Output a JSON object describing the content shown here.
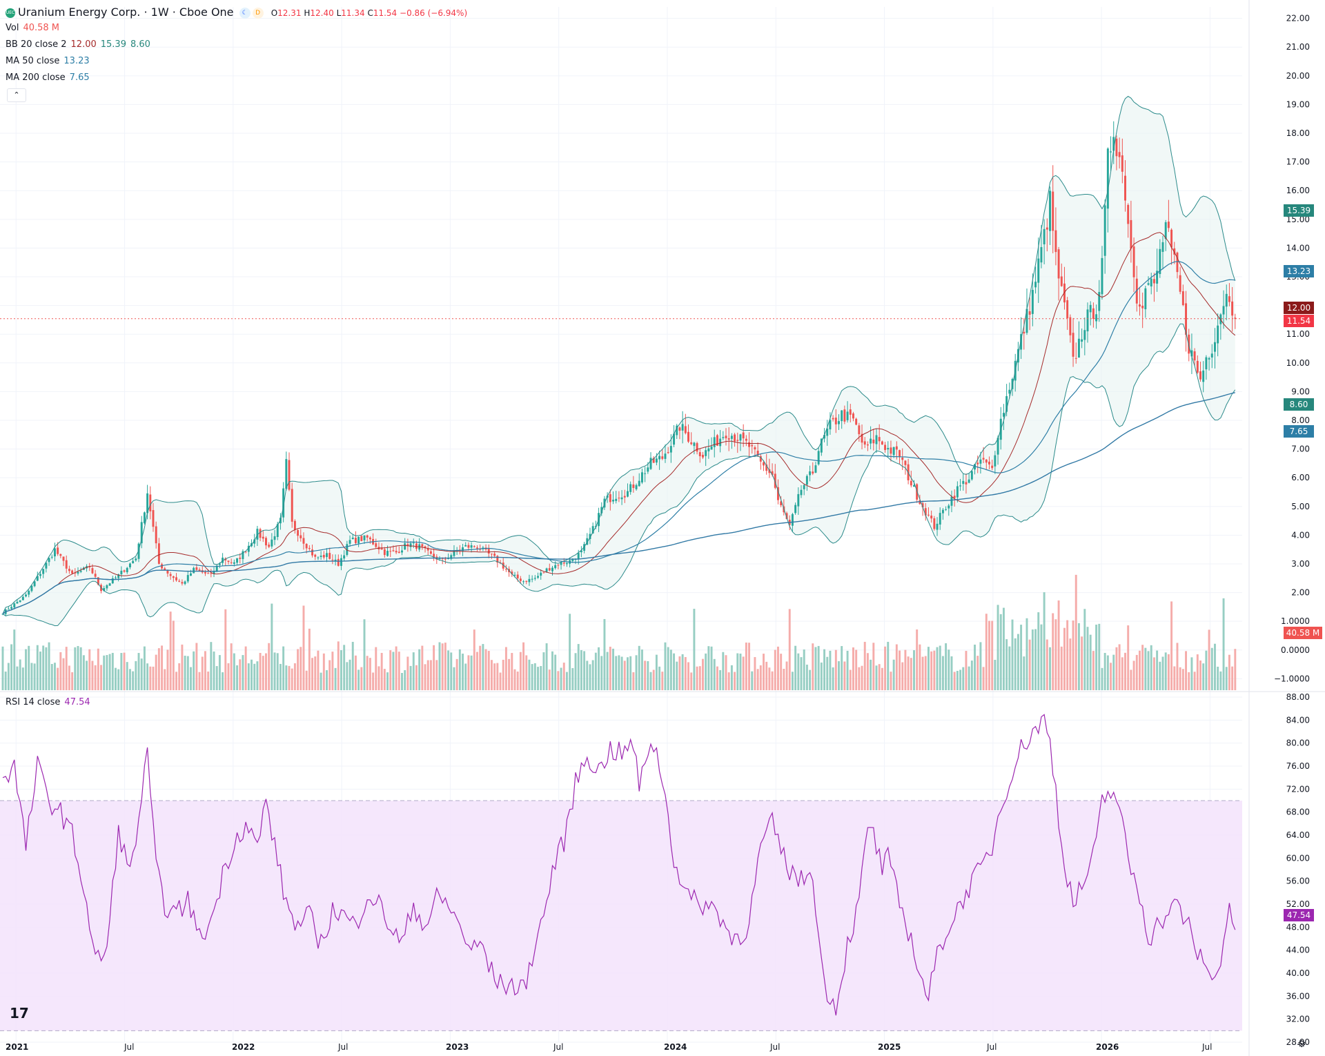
{
  "header": {
    "symbol_title": "Uranium Energy Corp. · 1W · Cboe One",
    "logo_text": "UEC",
    "open_label": "O",
    "open": "12.31",
    "high_label": "H",
    "high": "12.40",
    "low_label": "L",
    "low": "11.34",
    "close_label": "C",
    "close": "11.54",
    "change": "−0.86 (−6.94%)"
  },
  "legend": {
    "vol_label": "Vol",
    "vol_value": "40.58 M",
    "bb_label": "BB 20 close 2",
    "bb_basis": "12.00",
    "bb_upper": "15.39",
    "bb_lower": "8.60",
    "ma50_label": "MA 50 close",
    "ma50_value": "13.23",
    "ma200_label": "MA 200 close",
    "ma200_value": "7.65",
    "rsi_label": "RSI 14 close",
    "rsi_value": "47.54"
  },
  "colors": {
    "up": "#26a69a",
    "down": "#ef5350",
    "ma50": "#2d7ea6",
    "ma200": "#3179a5",
    "bb_basis": "#a52a2a",
    "bb_band": "#2a8a8a",
    "rsi": "#9c27b0",
    "price_line": "#ef5350"
  },
  "price_axis_labels": [
    "22.00",
    "21.00",
    "20.00",
    "19.00",
    "18.00",
    "17.00",
    "16.00",
    "15.00",
    "14.00",
    "13.00",
    "12.00",
    "11.00",
    "10.00",
    "9.00",
    "8.00",
    "7.00",
    "6.00",
    "5.00",
    "4.00",
    "3.00",
    "2.00",
    "1.0000",
    "0.0000",
    "−1.0000"
  ],
  "rsi_axis_labels": [
    "88.00",
    "84.00",
    "80.00",
    "76.00",
    "72.00",
    "68.00",
    "64.00",
    "60.00",
    "56.00",
    "52.00",
    "48.00",
    "44.00",
    "40.00",
    "36.00",
    "32.00",
    "28.00"
  ],
  "badges": [
    {
      "text": "15.39",
      "color": "#26877c"
    },
    {
      "text": "13.23",
      "color": "#2d7ea6"
    },
    {
      "text": "12.00",
      "color": "#8b1a1a"
    },
    {
      "text": "11.54",
      "color": "#f23645"
    },
    {
      "text": "8.60",
      "color": "#26877c"
    },
    {
      "text": "7.65",
      "color": "#2d7ea6"
    },
    {
      "text": "40.58 M",
      "color": "#ef5350"
    },
    {
      "text": "47.54",
      "color": "#9c27b0"
    }
  ],
  "time_axis_labels": [
    "2021",
    "Jul",
    "2022",
    "Jul",
    "2023",
    "Jul",
    "2024",
    "Jul",
    "2025",
    "Jul",
    "2026",
    "Jul"
  ],
  "chart_data": {
    "type": "candlestick",
    "interval": "1W",
    "price_range": [
      -1.4,
      22.4
    ],
    "rsi_range": [
      28,
      88
    ],
    "rsi_bands": [
      30,
      70
    ],
    "last_close": 11.54,
    "closes_path": [
      [
        0,
        1.3
      ],
      [
        8,
        1.9
      ],
      [
        15,
        3.0
      ],
      [
        18,
        3.5
      ],
      [
        24,
        2.6
      ],
      [
        30,
        2.9
      ],
      [
        34,
        2.1
      ],
      [
        40,
        2.6
      ],
      [
        46,
        3.2
      ],
      [
        50,
        5.5
      ],
      [
        54,
        3.0
      ],
      [
        58,
        2.6
      ],
      [
        62,
        2.3
      ],
      [
        66,
        2.8
      ],
      [
        72,
        2.6
      ],
      [
        76,
        3.2
      ],
      [
        80,
        3.0
      ],
      [
        84,
        3.5
      ],
      [
        88,
        4.1
      ],
      [
        92,
        3.6
      ],
      [
        96,
        4.5
      ],
      [
        98,
        6.5
      ],
      [
        100,
        4.4
      ],
      [
        104,
        3.8
      ],
      [
        108,
        3.2
      ],
      [
        112,
        3.3
      ],
      [
        116,
        3.0
      ],
      [
        120,
        3.8
      ],
      [
        126,
        3.9
      ],
      [
        132,
        3.4
      ],
      [
        136,
        3.4
      ],
      [
        140,
        3.7
      ],
      [
        144,
        3.6
      ],
      [
        148,
        3.3
      ],
      [
        152,
        3.1
      ],
      [
        156,
        3.4
      ],
      [
        160,
        3.6
      ],
      [
        164,
        3.6
      ],
      [
        170,
        3.2
      ],
      [
        176,
        2.6
      ],
      [
        180,
        2.4
      ],
      [
        184,
        2.5
      ],
      [
        188,
        2.8
      ],
      [
        192,
        3.0
      ],
      [
        196,
        3.1
      ],
      [
        200,
        3.4
      ],
      [
        204,
        4.2
      ],
      [
        208,
        5.2
      ],
      [
        212,
        5.4
      ],
      [
        216,
        5.5
      ],
      [
        220,
        6.0
      ],
      [
        224,
        6.5
      ],
      [
        228,
        6.7
      ],
      [
        232,
        7.4
      ],
      [
        234,
        7.8
      ],
      [
        238,
        7.3
      ],
      [
        242,
        6.8
      ],
      [
        246,
        7.2
      ],
      [
        250,
        7.6
      ],
      [
        254,
        7.4
      ],
      [
        258,
        7.1
      ],
      [
        262,
        6.5
      ],
      [
        266,
        6.1
      ],
      [
        268,
        5.2
      ],
      [
        272,
        4.3
      ],
      [
        276,
        5.6
      ],
      [
        280,
        6.2
      ],
      [
        282,
        7.0
      ],
      [
        286,
        7.8
      ],
      [
        290,
        8.2
      ],
      [
        294,
        8.0
      ],
      [
        298,
        7.0
      ],
      [
        302,
        7.4
      ],
      [
        306,
        7.0
      ],
      [
        310,
        6.8
      ],
      [
        314,
        5.8
      ],
      [
        318,
        5.0
      ],
      [
        322,
        4.3
      ],
      [
        326,
        5.0
      ],
      [
        330,
        5.6
      ],
      [
        334,
        6.0
      ],
      [
        338,
        6.6
      ],
      [
        342,
        6.3
      ],
      [
        344,
        7.6
      ],
      [
        348,
        9.2
      ],
      [
        352,
        10.8
      ],
      [
        356,
        12.4
      ],
      [
        360,
        14.4
      ],
      [
        362,
        15.6
      ],
      [
        364,
        13.6
      ],
      [
        366,
        12.4
      ],
      [
        368,
        11.4
      ],
      [
        370,
        10.0
      ],
      [
        374,
        11.4
      ],
      [
        378,
        12.0
      ],
      [
        380,
        13.3
      ],
      [
        382,
        17.0
      ],
      [
        384,
        18.2
      ],
      [
        386,
        17.2
      ],
      [
        388,
        16.0
      ],
      [
        390,
        14.0
      ],
      [
        392,
        12.4
      ],
      [
        394,
        12.2
      ],
      [
        396,
        12.8
      ],
      [
        398,
        12.6
      ],
      [
        400,
        13.8
      ],
      [
        402,
        14.8
      ],
      [
        404,
        13.8
      ],
      [
        406,
        13.0
      ],
      [
        408,
        11.8
      ],
      [
        410,
        10.6
      ],
      [
        412,
        10.0
      ],
      [
        414,
        9.4
      ],
      [
        416,
        10.2
      ],
      [
        418,
        10.6
      ],
      [
        420,
        11.4
      ],
      [
        422,
        12.2
      ],
      [
        424,
        12.4
      ],
      [
        426,
        11.54
      ]
    ],
    "rsi_path": [
      [
        0,
        74
      ],
      [
        4,
        76
      ],
      [
        8,
        62
      ],
      [
        12,
        76
      ],
      [
        16,
        70
      ],
      [
        20,
        68
      ],
      [
        24,
        64
      ],
      [
        28,
        55
      ],
      [
        32,
        42
      ],
      [
        36,
        44
      ],
      [
        40,
        65
      ],
      [
        44,
        57
      ],
      [
        47,
        67
      ],
      [
        50,
        78
      ],
      [
        53,
        58
      ],
      [
        56,
        52
      ],
      [
        60,
        50
      ],
      [
        64,
        53
      ],
      [
        68,
        46
      ],
      [
        72,
        49
      ],
      [
        76,
        57
      ],
      [
        80,
        63
      ],
      [
        84,
        66
      ],
      [
        88,
        62
      ],
      [
        91,
        70
      ],
      [
        94,
        62
      ],
      [
        98,
        52
      ],
      [
        102,
        48
      ],
      [
        106,
        50
      ],
      [
        110,
        45
      ],
      [
        114,
        51
      ],
      [
        118,
        50
      ],
      [
        122,
        48
      ],
      [
        126,
        54
      ],
      [
        130,
        52
      ],
      [
        134,
        48
      ],
      [
        138,
        45
      ],
      [
        142,
        52
      ],
      [
        146,
        48
      ],
      [
        150,
        53
      ],
      [
        154,
        52
      ],
      [
        158,
        48
      ],
      [
        162,
        44
      ],
      [
        166,
        45
      ],
      [
        168,
        41
      ],
      [
        172,
        38
      ],
      [
        176,
        38
      ],
      [
        180,
        37
      ],
      [
        184,
        45
      ],
      [
        188,
        52
      ],
      [
        190,
        58
      ],
      [
        194,
        63
      ],
      [
        198,
        73
      ],
      [
        202,
        78
      ],
      [
        206,
        75
      ],
      [
        210,
        79
      ],
      [
        214,
        78
      ],
      [
        218,
        80
      ],
      [
        220,
        72
      ],
      [
        224,
        81
      ],
      [
        226,
        78
      ],
      [
        228,
        74
      ],
      [
        232,
        60
      ],
      [
        236,
        54
      ],
      [
        240,
        52
      ],
      [
        244,
        52
      ],
      [
        248,
        50
      ],
      [
        252,
        46
      ],
      [
        256,
        47
      ],
      [
        258,
        49
      ],
      [
        262,
        62
      ],
      [
        266,
        66
      ],
      [
        270,
        60
      ],
      [
        272,
        58
      ],
      [
        276,
        56
      ],
      [
        280,
        58
      ],
      [
        282,
        46
      ],
      [
        284,
        38
      ],
      [
        288,
        34
      ],
      [
        292,
        45
      ],
      [
        296,
        52
      ],
      [
        298,
        62
      ],
      [
        300,
        66
      ],
      [
        304,
        58
      ],
      [
        306,
        60
      ],
      [
        310,
        52
      ],
      [
        314,
        46
      ],
      [
        318,
        38
      ],
      [
        320,
        36
      ],
      [
        324,
        45
      ],
      [
        328,
        49
      ],
      [
        330,
        51
      ],
      [
        334,
        55
      ],
      [
        338,
        58
      ],
      [
        342,
        62
      ],
      [
        344,
        67
      ],
      [
        348,
        74
      ],
      [
        352,
        79
      ],
      [
        356,
        82
      ],
      [
        360,
        84
      ],
      [
        362,
        80
      ],
      [
        364,
        72
      ],
      [
        366,
        62
      ],
      [
        370,
        52
      ],
      [
        374,
        56
      ],
      [
        378,
        62
      ],
      [
        380,
        70
      ],
      [
        384,
        72
      ],
      [
        386,
        68
      ],
      [
        390,
        58
      ],
      [
        394,
        52
      ],
      [
        396,
        46
      ],
      [
        400,
        49
      ],
      [
        402,
        50
      ],
      [
        406,
        52
      ],
      [
        410,
        48
      ],
      [
        412,
        44
      ],
      [
        416,
        42
      ],
      [
        418,
        38
      ],
      [
        420,
        40
      ],
      [
        424,
        52
      ],
      [
        426,
        47.54
      ]
    ]
  }
}
